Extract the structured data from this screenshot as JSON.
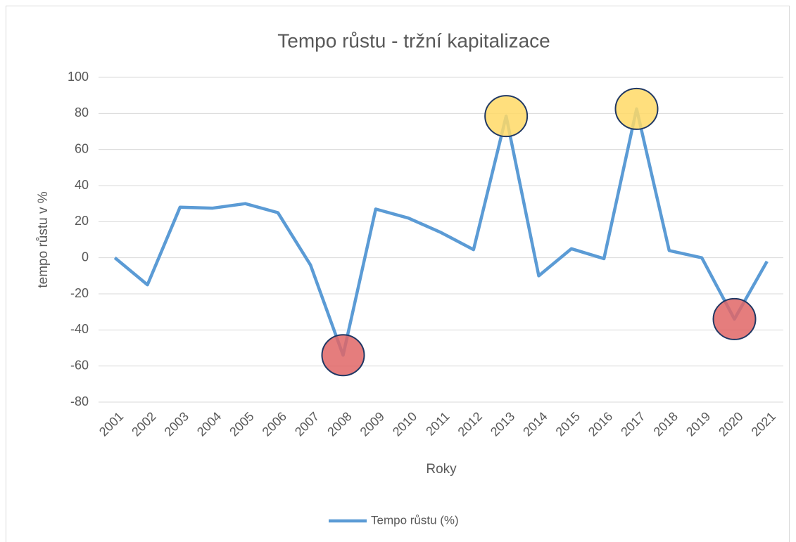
{
  "chart_data": {
    "type": "line",
    "title": "Tempo růstu - tržní kapitalizace",
    "x_label": "Roky",
    "y_label": "tempo růstu v %",
    "categories": [
      "2001",
      "2002",
      "2003",
      "2004",
      "2005",
      "2006",
      "2007",
      "2008",
      "2009",
      "2010",
      "2011",
      "2012",
      "2013",
      "2014",
      "2015",
      "2016",
      "2017",
      "2018",
      "2019",
      "2020",
      "2021"
    ],
    "series": [
      {
        "name": "Tempo růstu (%)",
        "color": "#5b9bd5",
        "values": [
          0,
          -15,
          28,
          27.5,
          30,
          25,
          -4,
          -54,
          27,
          22,
          14,
          4.5,
          78.5,
          -10,
          5,
          -0.5,
          82.5,
          4,
          0,
          -34,
          -2
        ]
      }
    ],
    "ylim": [
      -80,
      100
    ],
    "yticks": [
      -80,
      -60,
      -40,
      -20,
      0,
      20,
      40,
      60,
      80,
      100
    ],
    "grid": true,
    "legend": "bottom",
    "highlights": [
      {
        "category": "2008",
        "color": "#e06666"
      },
      {
        "category": "2013",
        "color": "#ffd966"
      },
      {
        "category": "2017",
        "color": "#ffd966"
      },
      {
        "category": "2020",
        "color": "#e06666"
      }
    ]
  }
}
